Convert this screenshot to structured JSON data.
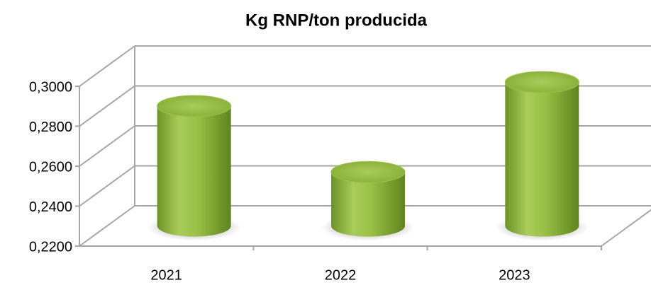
{
  "chart_data": {
    "type": "bar",
    "title": "Kg RNP/ton producida",
    "categories": [
      "2021",
      "2022",
      "2023"
    ],
    "values": [
      0.28,
      0.247,
      0.292
    ],
    "color": "#8db33a",
    "ylim": [
      0.22,
      0.3
    ],
    "yticks": [
      {
        "value": 0.22,
        "label": "0,2200"
      },
      {
        "value": 0.24,
        "label": "0,2400"
      },
      {
        "value": 0.26,
        "label": "0,2600"
      },
      {
        "value": 0.28,
        "label": "0,2800"
      },
      {
        "value": 0.3,
        "label": "0,3000"
      }
    ],
    "grid": true
  }
}
